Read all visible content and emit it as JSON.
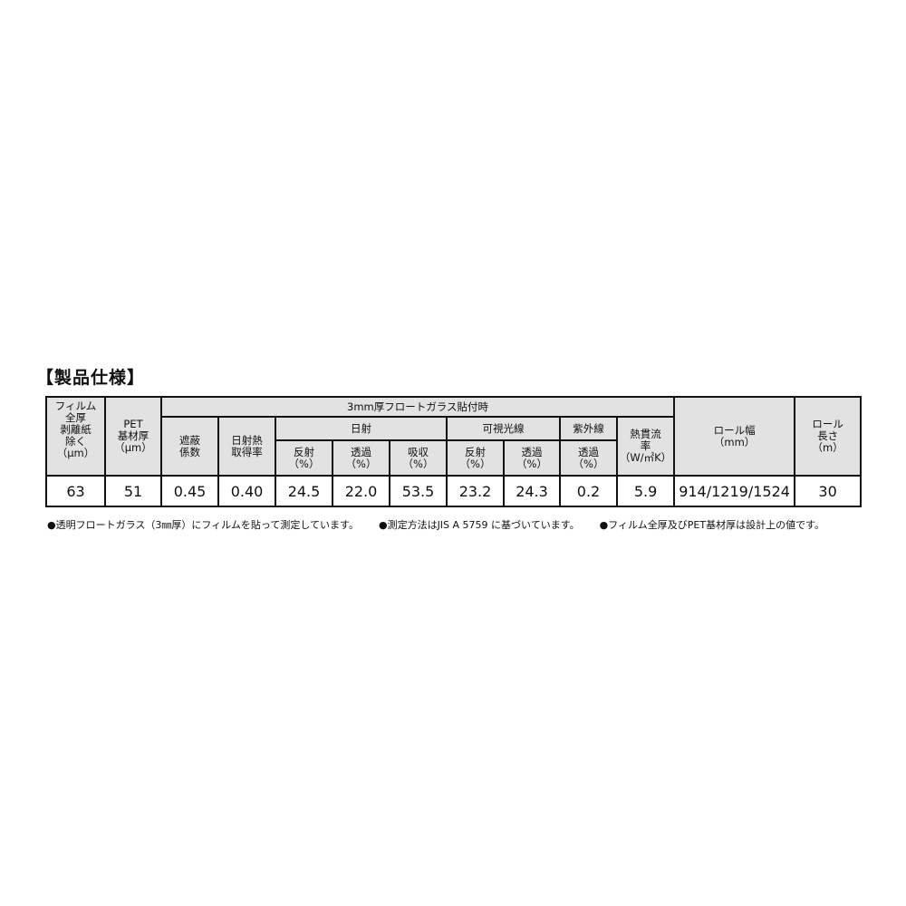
{
  "title": "【製品仕様】",
  "headers": {
    "film_total": "フィルム\n全厚\n剥離紙\n除く\n（μm）",
    "pet": "PET\n基材厚\n（μm）",
    "group": "3mm厚フロートガラス貼付時",
    "shading": "遮蔽\n係数",
    "solar_gain": "日射熱\n取得率",
    "solar": "日射",
    "visible": "可視光線",
    "uv": "紫外線",
    "heat": "熱貫流\n率\n（W/㎡K）",
    "roll_width": "ロール幅\n（mm）",
    "roll_length": "ロール\n長さ\n（m）",
    "solar_reflect": "反射\n（%）",
    "solar_trans": "透過\n（%）",
    "solar_absorb": "吸収\n（%）",
    "vis_reflect": "反射\n（%）",
    "vis_trans": "透過\n（%）",
    "uv_trans": "透過\n（%）"
  },
  "values": [
    "63",
    "51",
    "0.45",
    "0.40",
    "24.5",
    "22.0",
    "53.5",
    "23.2",
    "24.3",
    "0.2",
    "5.9",
    "914/1219/1524",
    "30"
  ],
  "notes": [
    "●透明フロートガラス（3㎜厚）にフィルムを貼って測定しています。",
    "●測定方法はJIS A 5759 に基づいています。",
    "●フィルム全厚及びPET基材厚は設計上の値です。"
  ]
}
